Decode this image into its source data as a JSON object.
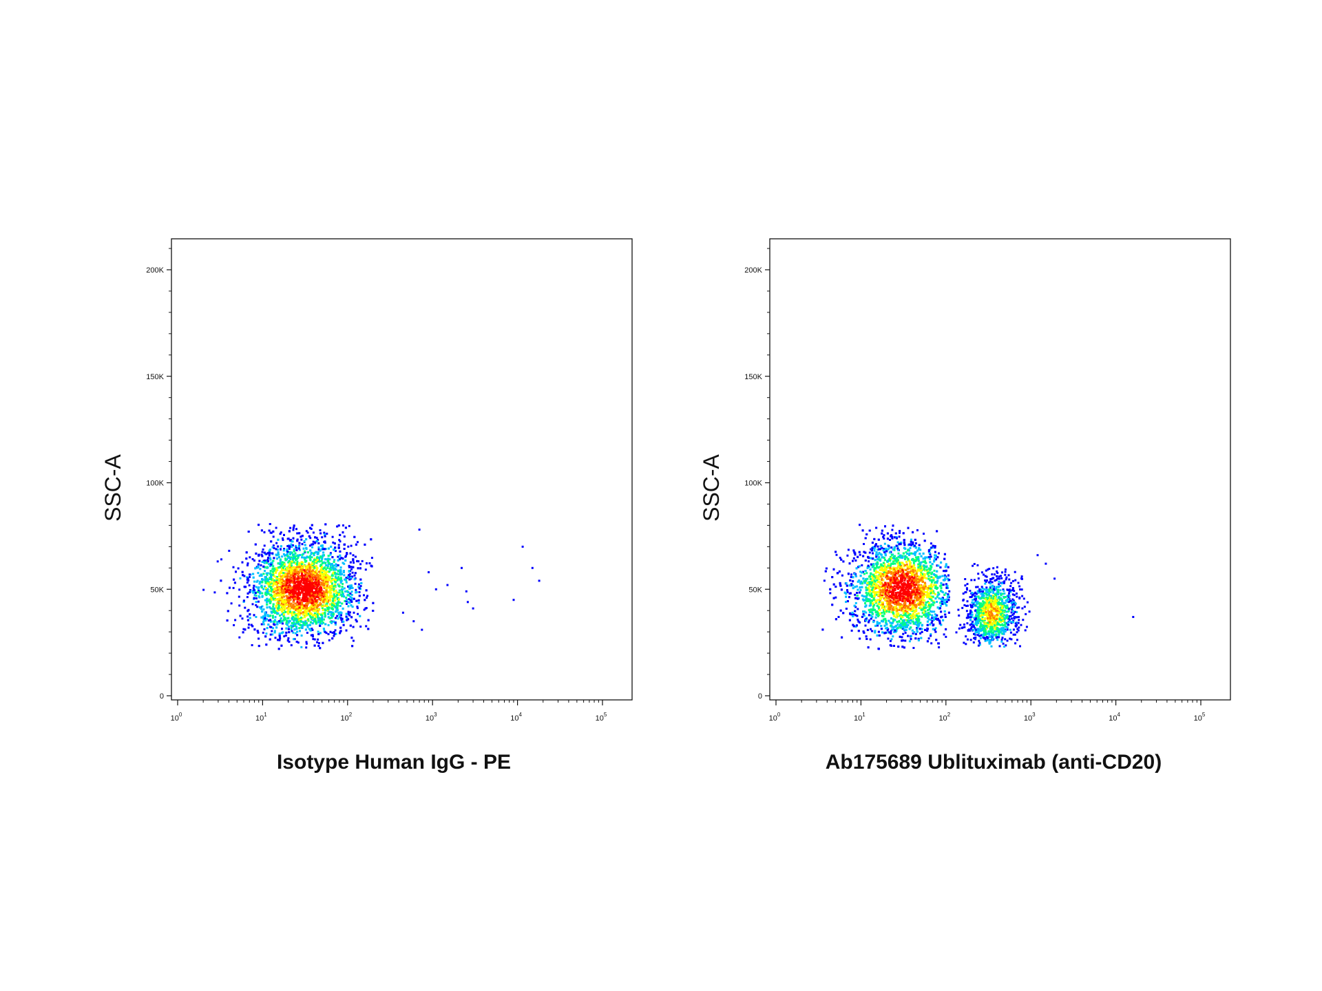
{
  "chart_data": [
    {
      "type": "scatter",
      "subtype": "flow-cytometry density dot plot",
      "xlabel": "Isotype Human IgG - PE",
      "ylabel": "SSC-A",
      "xscale": "log",
      "xlim": [
        1,
        100000
      ],
      "ylim": [
        0,
        215000
      ],
      "x_ticks": [
        1,
        10,
        100,
        1000,
        10000,
        100000
      ],
      "x_tick_labels": [
        {
          "base": "10",
          "exp": "0"
        },
        {
          "base": "10",
          "exp": "1"
        },
        {
          "base": "10",
          "exp": "2"
        },
        {
          "base": "10",
          "exp": "3"
        },
        {
          "base": "10",
          "exp": "4"
        },
        {
          "base": "10",
          "exp": "5"
        }
      ],
      "y_ticks": [
        0,
        50000,
        100000,
        150000,
        200000
      ],
      "y_tick_labels": [
        "0",
        "50K",
        "100K",
        "150K",
        "200K"
      ],
      "grid": false,
      "colormap": [
        "#0000ff",
        "#00c0ff",
        "#00ff80",
        "#ffff00",
        "#ff8000",
        "#ff0000"
      ],
      "populations": [
        {
          "center_x": 30,
          "center_y": 50000,
          "log_spread_x": 0.32,
          "spread_y": 11000,
          "count": 4200,
          "y_range": [
            22000,
            81000
          ],
          "x_range": [
            2,
            200
          ],
          "peak_density": "high"
        }
      ],
      "outliers": [
        [
          700,
          78000
        ],
        [
          900,
          58000
        ],
        [
          1100,
          50000
        ],
        [
          2200,
          60000
        ],
        [
          3000,
          41000
        ],
        [
          2500,
          49000
        ],
        [
          9000,
          45000
        ],
        [
          11500,
          70000
        ],
        [
          15000,
          60000
        ],
        [
          18000,
          54000
        ],
        [
          750,
          31000
        ],
        [
          600,
          35000
        ],
        [
          450,
          39000
        ],
        [
          2600,
          44000
        ],
        [
          1500,
          52000
        ]
      ]
    },
    {
      "type": "scatter",
      "subtype": "flow-cytometry density dot plot",
      "xlabel": "Ab175689 Ublituximab (anti-CD20)",
      "ylabel": "SSC-A",
      "xscale": "log",
      "xlim": [
        1,
        100000
      ],
      "ylim": [
        0,
        215000
      ],
      "x_ticks": [
        1,
        10,
        100,
        1000,
        10000,
        100000
      ],
      "x_tick_labels": [
        {
          "base": "10",
          "exp": "0"
        },
        {
          "base": "10",
          "exp": "1"
        },
        {
          "base": "10",
          "exp": "2"
        },
        {
          "base": "10",
          "exp": "3"
        },
        {
          "base": "10",
          "exp": "4"
        },
        {
          "base": "10",
          "exp": "5"
        }
      ],
      "y_ticks": [
        0,
        50000,
        100000,
        150000,
        200000
      ],
      "y_tick_labels": [
        "0",
        "50K",
        "100K",
        "150K",
        "200K"
      ],
      "grid": false,
      "colormap": [
        "#0000ff",
        "#00c0ff",
        "#00ff80",
        "#ffff00",
        "#ff8000",
        "#ff0000"
      ],
      "populations": [
        {
          "center_x": 30,
          "center_y": 50000,
          "log_spread_x": 0.3,
          "spread_y": 11000,
          "count": 3800,
          "y_range": [
            22000,
            81000
          ],
          "x_range": [
            2,
            110
          ],
          "peak_density": "high"
        },
        {
          "center_x": 350,
          "center_y": 39000,
          "log_spread_x": 0.14,
          "spread_y": 8000,
          "count": 1100,
          "y_range": [
            23000,
            76000
          ],
          "x_range": [
            130,
            1400
          ],
          "peak_density": "medium"
        }
      ],
      "outliers": [
        [
          1900,
          55000
        ],
        [
          16000,
          37000
        ],
        [
          1200,
          66000
        ],
        [
          1500,
          62000
        ]
      ]
    }
  ]
}
